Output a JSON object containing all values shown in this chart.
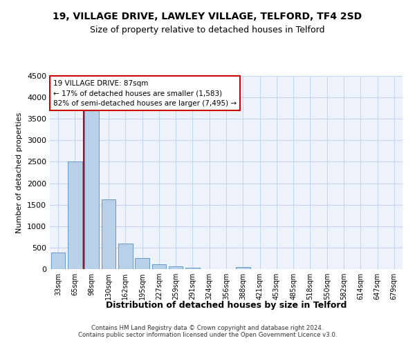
{
  "title_line1": "19, VILLAGE DRIVE, LAWLEY VILLAGE, TELFORD, TF4 2SD",
  "title_line2": "Size of property relative to detached houses in Telford",
  "xlabel": "Distribution of detached houses by size in Telford",
  "ylabel": "Number of detached properties",
  "bar_color": "#b8d0e8",
  "bar_edge_color": "#6699cc",
  "vline_color": "#cc0000",
  "bg_color": "#eef2fb",
  "grid_color": "#c8d4ee",
  "categories": [
    "33sqm",
    "65sqm",
    "98sqm",
    "130sqm",
    "162sqm",
    "195sqm",
    "227sqm",
    "259sqm",
    "291sqm",
    "324sqm",
    "356sqm",
    "388sqm",
    "421sqm",
    "453sqm",
    "485sqm",
    "518sqm",
    "550sqm",
    "582sqm",
    "614sqm",
    "647sqm",
    "679sqm"
  ],
  "values": [
    390,
    2500,
    3700,
    1620,
    590,
    250,
    110,
    60,
    40,
    0,
    0,
    50,
    0,
    0,
    0,
    0,
    0,
    0,
    0,
    0,
    0
  ],
  "vline_x": 1.5,
  "annotation_line1": "19 VILLAGE DRIVE: 87sqm",
  "annotation_line2": "← 17% of detached houses are smaller (1,583)",
  "annotation_line3": "82% of semi-detached houses are larger (7,495) →",
  "ylim_max": 4500,
  "yticks": [
    0,
    500,
    1000,
    1500,
    2000,
    2500,
    3000,
    3500,
    4000,
    4500
  ],
  "footer": "Contains HM Land Registry data © Crown copyright and database right 2024.\nContains public sector information licensed under the Open Government Licence v3.0."
}
